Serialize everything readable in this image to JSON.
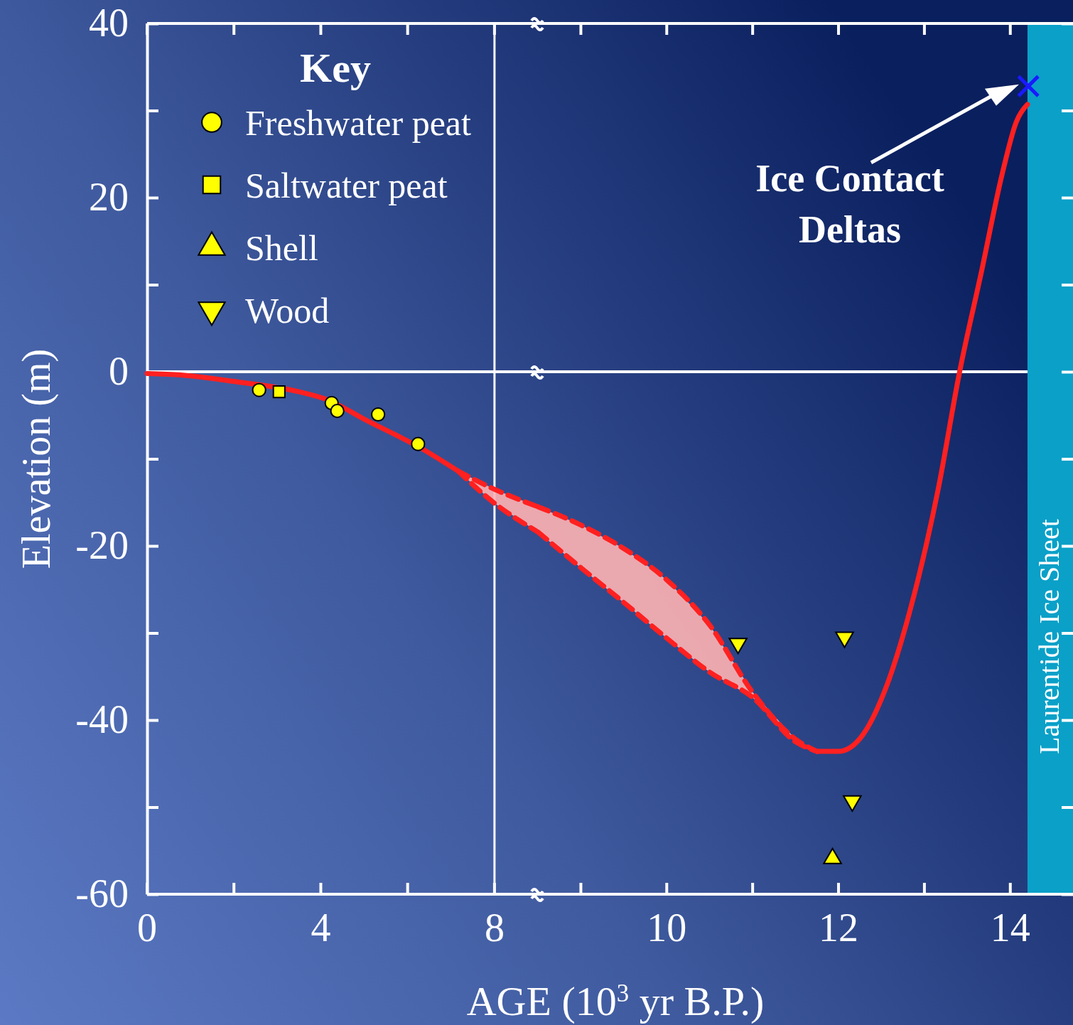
{
  "chart_data": [
    {
      "type": "line",
      "ylabel": "Elevation (m)",
      "legend_title": "Key",
      "legend": "top left",
      "xlim": [
        0,
        9
      ],
      "xticks": [
        0,
        {
          "value": 2,
          "label": null
        },
        4,
        {
          "value": 6,
          "label": null
        },
        8
      ],
      "ylim": [
        -60,
        40
      ],
      "yticks": [
        -60,
        {
          "value": -50,
          "label": null
        },
        -40,
        {
          "value": -30,
          "label": null
        },
        -20,
        {
          "value": -10,
          "label": null
        },
        0,
        {
          "value": 10,
          "label": null
        },
        20,
        {
          "value": 30,
          "label": null
        },
        40
      ],
      "ref_lines": [
        {
          "axis": "y",
          "value": 0,
          "color": "#ffffff"
        },
        {
          "axis": "x",
          "value": 8,
          "color": "#ffffff"
        }
      ],
      "series": [
        {
          "color": "#ff2020",
          "x": [
            0,
            0.86,
            1.99,
            3.5,
            4.09,
            5.06,
            6.35,
            7.16
          ],
          "values": [
            -0.2,
            -0.4,
            -1.1,
            -2.3,
            -3.1,
            -5.6,
            -8.9,
            -11.4
          ]
        },
        {
          "color": "#ff2020",
          "line_style": "dashed",
          "x": [
            7.16,
            8,
            9
          ],
          "values": [
            -11.4,
            -13.5,
            -15.5
          ],
          "lower": [
            -11.4,
            -15.1,
            -18.4
          ],
          "upper": [
            -11.4,
            -13.5,
            -15.5
          ]
        },
        {
          "color": "#ff2020",
          "line_style": "dashed",
          "x": [
            7.16,
            8,
            9
          ],
          "values": [
            -11.4,
            -15.1,
            -18.4
          ]
        },
        {
          "type": "scatter",
          "name": "Freshwater peat",
          "marker": "circle",
          "color": "#ffff00",
          "x": [
            2.58,
            4.25,
            4.38,
            5.32,
            6.24
          ],
          "values": [
            -2.1,
            -3.6,
            -4.5,
            -4.9,
            -8.3
          ]
        },
        {
          "type": "scatter",
          "name": "Saltwater peat",
          "marker": "square",
          "color": "#ffff00",
          "x": [
            3.04
          ],
          "values": [
            -2.3
          ]
        }
      ]
    },
    {
      "type": "line",
      "xlabel": "AGE (10$^{3}$ yr B.P.)",
      "tick_labels": "x",
      "legend": "top left",
      "xlim": [
        8.5,
        14.73
      ],
      "xticks": [
        {
          "value": 9,
          "label": null
        },
        10,
        {
          "value": 11,
          "label": null
        },
        12,
        {
          "value": 13,
          "label": null
        },
        14
      ],
      "ylim": [
        -60,
        40
      ],
      "yticks": [
        -60,
        {
          "value": -50,
          "label": null
        },
        -40,
        {
          "value": -30,
          "label": null
        },
        -20,
        {
          "value": -10,
          "label": null
        },
        0,
        {
          "value": 10,
          "label": null
        },
        20,
        {
          "value": 30,
          "label": null
        },
        40
      ],
      "ref_lines": [
        {
          "axis": "y",
          "value": 0,
          "color": "#ffffff"
        }
      ],
      "bands": [
        {
          "axis": "x",
          "from": 14.2,
          "to": 14.73,
          "label": "Laurentide Ice Sheet",
          "color": "#0aa0c8"
        }
      ],
      "annotations": [
        {
          "text": "Ice Contact Deltas",
          "x": 14.2,
          "y": 33
        }
      ],
      "series": [
        {
          "color": "#ff2020",
          "line_style": "dashed",
          "x": [
            8.5,
            9,
            9.5,
            10,
            10.5,
            11,
            11.5,
            11.75
          ],
          "values": [
            -15.5,
            -17.6,
            -20.3,
            -23.9,
            -29.1,
            -36.8,
            -42.2,
            -43.6
          ],
          "lower": [
            -18.4,
            -22.5,
            -26.5,
            -30.6,
            -34.5,
            -37.4,
            -42.5,
            -43.6
          ],
          "upper": [
            -15.5,
            -17.6,
            -20.3,
            -23.9,
            -29.1,
            -36.8,
            -42.2,
            -43.6
          ]
        },
        {
          "color": "#ff2020",
          "line_style": "dashed",
          "x": [
            8.5,
            9,
            9.5,
            10,
            10.5,
            11,
            11.5,
            11.75
          ],
          "values": [
            -18.4,
            -22.5,
            -26.5,
            -30.6,
            -34.5,
            -37.4,
            -42.5,
            -43.6
          ]
        },
        {
          "color": "#ff2020",
          "x": [
            11.75,
            12,
            12.29,
            12.54,
            12.83,
            13.16,
            13.41,
            13.66,
            13.91,
            14.07,
            14.2
          ],
          "values": [
            -43.6,
            -43.6,
            -41.6,
            -36.6,
            -27.5,
            -13.5,
            0,
            11.3,
            22.9,
            28.7,
            30.7
          ]
        },
        {
          "type": "scatter",
          "name": "Shell",
          "marker": "triangle",
          "color": "#ffff00",
          "x": [
            11.93
          ],
          "values": [
            -55.9
          ]
        },
        {
          "type": "scatter",
          "name": "Wood",
          "marker": "triangle-down",
          "color": "#ffff00",
          "x": [
            10.83,
            12.07,
            12.16
          ],
          "values": [
            -31.2,
            -30.5,
            -49.3
          ]
        },
        {
          "type": "scatter",
          "marker": "cross",
          "color": "#1a1aff",
          "x": [
            14.21
          ],
          "values": [
            32.8
          ]
        }
      ]
    }
  ]
}
